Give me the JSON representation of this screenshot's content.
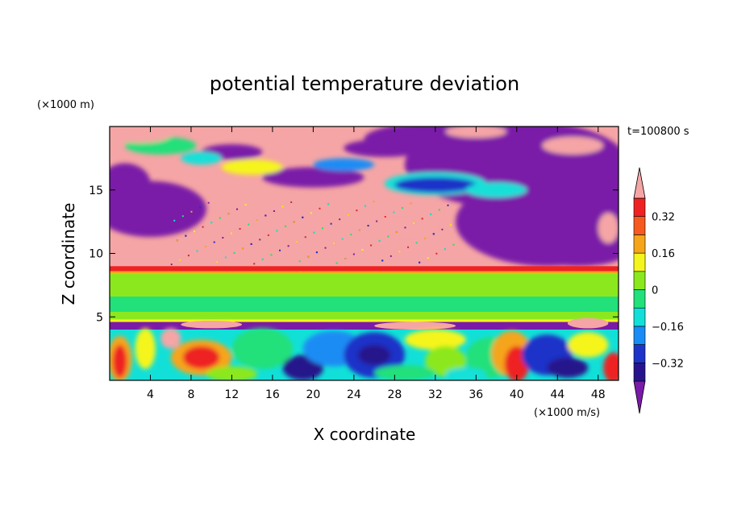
{
  "chart_data": {
    "type": "heatmap",
    "title": "potential temperature deviation",
    "xlabel": "X coordinate",
    "ylabel": "Z coordinate",
    "x_units": "(×1000 m/s)",
    "y_units": "(×1000 m)",
    "time_label": "t=100800 s",
    "xlim": [
      0,
      50
    ],
    "ylim": [
      0,
      20
    ],
    "x_ticks": [
      4,
      8,
      12,
      16,
      20,
      24,
      28,
      32,
      36,
      40,
      44,
      48
    ],
    "y_ticks": [
      5,
      10,
      15
    ],
    "colorbar": {
      "levels": [
        -0.4,
        -0.32,
        -0.24,
        -0.16,
        -0.08,
        0,
        0.08,
        0.16,
        0.24,
        0.32,
        0.4
      ],
      "labels": [
        "0.32",
        "0.16",
        "0",
        "−0.16",
        "−0.32"
      ],
      "label_values": [
        0.32,
        0.16,
        0,
        -0.16,
        -0.32
      ],
      "colors": [
        "#7a1aa8",
        "#27148c",
        "#1e33c8",
        "#1a8cf5",
        "#12e0d8",
        "#22e07a",
        "#8ce81e",
        "#f5f51e",
        "#f5a51a",
        "#f55a1e",
        "#ee2222",
        "#f5a5a5"
      ],
      "extend": "both"
    },
    "layers": [
      {
        "z_range": [
          0,
          4.5
        ],
        "description_value": "mixed"
      },
      {
        "z_range": [
          4.5,
          8.5
        ],
        "value": 0.0
      },
      {
        "z_range": [
          8.5,
          9.0
        ],
        "value": 0.36
      },
      {
        "z_range": [
          9.0,
          20
        ],
        "value": "mixed"
      }
    ]
  }
}
